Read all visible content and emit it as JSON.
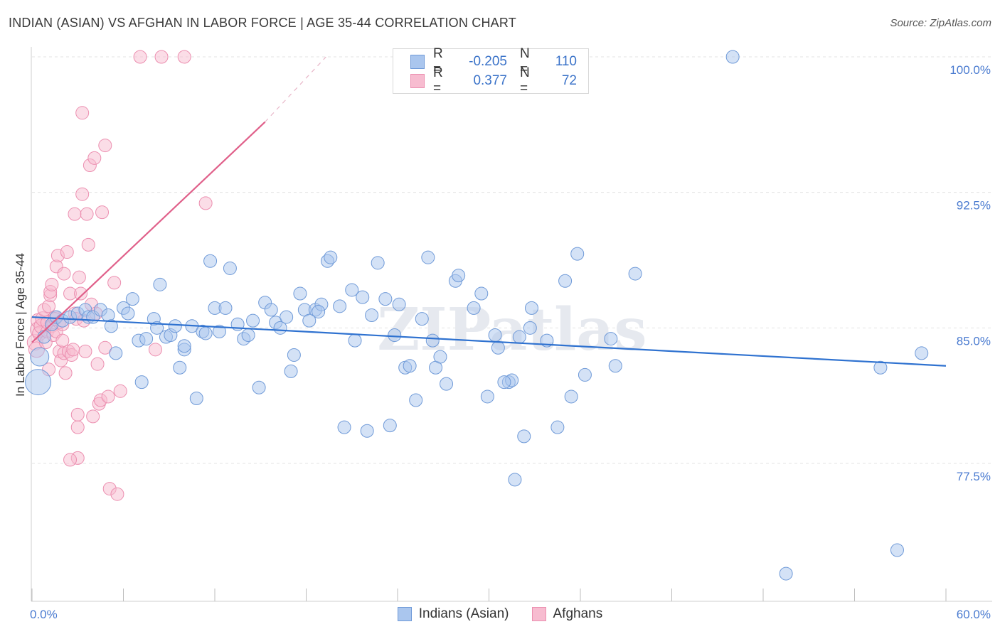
{
  "header": {
    "title": "INDIAN (ASIAN) VS AFGHAN IN LABOR FORCE | AGE 35-44 CORRELATION CHART",
    "source": "Source: ZipAtlas.com"
  },
  "colors": {
    "blue_fill": "#aac6ee",
    "blue_stroke": "#6f9ad8",
    "blue_line": "#2f72d0",
    "pink_fill": "#f7bcd0",
    "pink_stroke": "#ec8fb0",
    "pink_line": "#e0608a",
    "tick_text": "#4a7bd0"
  },
  "legend": {
    "rows": [
      {
        "r_label": "R =",
        "r_value": "-0.205",
        "n_label": "N =",
        "n_value": "110"
      },
      {
        "r_label": "R =",
        "r_value": "0.377",
        "n_label": "N =",
        "n_value": "72"
      }
    ]
  },
  "bottom_legend": {
    "items": [
      {
        "label": "Indians (Asian)"
      },
      {
        "label": "Afghans"
      }
    ]
  },
  "watermark": "ZIPatlas",
  "chart_data": {
    "type": "scatter",
    "title": "INDIAN (ASIAN) VS AFGHAN IN LABOR FORCE | AGE 35-44 CORRELATION CHART",
    "xlabel": "",
    "ylabel": "In Labor Force | Age 35-44",
    "xlim": [
      0,
      60
    ],
    "ylim": [
      70.5,
      100.5
    ],
    "x_tick_labels": [
      "0.0%",
      "60.0%"
    ],
    "y_ticks": [
      77.5,
      85.0,
      92.5,
      100.0
    ],
    "y_tick_labels": [
      "77.5%",
      "85.0%",
      "92.5%",
      "100.0%"
    ],
    "series": [
      {
        "name": "Indians (Asian)",
        "r": -0.205,
        "n": 110,
        "trend": {
          "x0": 0,
          "y0": 85.6,
          "x1": 60,
          "y1": 82.9
        },
        "points": [
          [
            0.4,
            82.0,
            18
          ],
          [
            0.5,
            83.4,
            13
          ],
          [
            0.8,
            84.5,
            9
          ],
          [
            1.3,
            85.2,
            9
          ],
          [
            1.6,
            85.6,
            9
          ],
          [
            2.0,
            85.4,
            9
          ],
          [
            2.5,
            85.6,
            9
          ],
          [
            3.0,
            85.8,
            9
          ],
          [
            3.5,
            86.0,
            9
          ],
          [
            3.7,
            85.6,
            9
          ],
          [
            4.0,
            85.6,
            9
          ],
          [
            4.5,
            86.0,
            9
          ],
          [
            5.0,
            85.7,
            9
          ],
          [
            5.2,
            85.1,
            9
          ],
          [
            5.5,
            83.6,
            9
          ],
          [
            6.0,
            86.1,
            9
          ],
          [
            6.3,
            85.8,
            9
          ],
          [
            6.6,
            86.6,
            9
          ],
          [
            7.0,
            84.3,
            9
          ],
          [
            7.2,
            82.0,
            9
          ],
          [
            7.5,
            84.4,
            9
          ],
          [
            8.0,
            85.5,
            9
          ],
          [
            8.2,
            85.0,
            9
          ],
          [
            8.4,
            87.4,
            9
          ],
          [
            8.8,
            84.5,
            9
          ],
          [
            9.1,
            84.6,
            9
          ],
          [
            9.4,
            85.1,
            9
          ],
          [
            9.7,
            82.8,
            9
          ],
          [
            10.0,
            83.8,
            9
          ],
          [
            10.5,
            85.1,
            9
          ],
          [
            10.8,
            81.1,
            9
          ],
          [
            11.2,
            84.8,
            9
          ],
          [
            11.4,
            84.7,
            9
          ],
          [
            11.7,
            88.7,
            9
          ],
          [
            12.0,
            86.1,
            9
          ],
          [
            12.3,
            84.8,
            9
          ],
          [
            12.7,
            86.1,
            9
          ],
          [
            13.0,
            88.3,
            9
          ],
          [
            13.5,
            85.2,
            9
          ],
          [
            13.9,
            84.4,
            9
          ],
          [
            14.2,
            84.6,
            9
          ],
          [
            14.5,
            85.4,
            9
          ],
          [
            14.9,
            81.7,
            9
          ],
          [
            15.3,
            86.4,
            9
          ],
          [
            15.7,
            86.0,
            9
          ],
          [
            16.0,
            85.3,
            9
          ],
          [
            16.3,
            85.0,
            9
          ],
          [
            16.7,
            85.6,
            9
          ],
          [
            17.0,
            82.6,
            9
          ],
          [
            17.2,
            83.5,
            9
          ],
          [
            17.6,
            86.9,
            9
          ],
          [
            17.9,
            86.0,
            9
          ],
          [
            18.2,
            85.4,
            9
          ],
          [
            18.6,
            86.0,
            9
          ],
          [
            19.0,
            86.3,
            9
          ],
          [
            19.4,
            88.7,
            9
          ],
          [
            19.6,
            88.9,
            9
          ],
          [
            20.2,
            86.2,
            9
          ],
          [
            20.5,
            79.5,
            9
          ],
          [
            21.0,
            87.1,
            9
          ],
          [
            21.2,
            84.3,
            9
          ],
          [
            21.7,
            86.7,
            9
          ],
          [
            22.0,
            79.3,
            9
          ],
          [
            22.3,
            85.7,
            9
          ],
          [
            22.7,
            88.6,
            9
          ],
          [
            23.2,
            86.6,
            9
          ],
          [
            23.5,
            79.6,
            9
          ],
          [
            23.8,
            84.6,
            9
          ],
          [
            24.1,
            86.3,
            9
          ],
          [
            24.5,
            82.8,
            9
          ],
          [
            24.8,
            82.9,
            9
          ],
          [
            25.2,
            81.0,
            9
          ],
          [
            25.6,
            85.5,
            9
          ],
          [
            26.0,
            88.9,
            9
          ],
          [
            26.5,
            82.8,
            9
          ],
          [
            26.8,
            83.4,
            9
          ],
          [
            27.2,
            81.9,
            9
          ],
          [
            27.8,
            87.6,
            9
          ],
          [
            28.0,
            87.9,
            9
          ],
          [
            29.0,
            86.1,
            9
          ],
          [
            29.5,
            86.9,
            9
          ],
          [
            29.9,
            81.2,
            9
          ],
          [
            30.4,
            84.6,
            9
          ],
          [
            30.6,
            83.9,
            9
          ],
          [
            31.3,
            82.0,
            9
          ],
          [
            31.5,
            82.1,
            9
          ],
          [
            32.0,
            84.5,
            9
          ],
          [
            32.3,
            79.0,
            9
          ],
          [
            32.7,
            85.0,
            9
          ],
          [
            32.8,
            86.1,
            9
          ],
          [
            33.8,
            84.3,
            9
          ],
          [
            34.5,
            79.5,
            9
          ],
          [
            35.0,
            87.6,
            9
          ],
          [
            35.4,
            81.2,
            9
          ],
          [
            35.8,
            89.1,
            9
          ],
          [
            36.3,
            82.4,
            9
          ],
          [
            38.0,
            84.4,
            9
          ],
          [
            38.3,
            82.9,
            9
          ],
          [
            39.6,
            88.0,
            9
          ],
          [
            46.0,
            100.0,
            9
          ],
          [
            49.5,
            71.4,
            9
          ],
          [
            55.7,
            82.8,
            9
          ],
          [
            56.8,
            72.7,
            9
          ],
          [
            58.4,
            83.6,
            9
          ],
          [
            31.0,
            82.0,
            9
          ],
          [
            31.7,
            76.6,
            9
          ],
          [
            18.8,
            85.9,
            9
          ],
          [
            10.0,
            84.0,
            9
          ],
          [
            26.3,
            84.3,
            9
          ]
        ]
      },
      {
        "name": "Afghans",
        "r": 0.377,
        "n": 72,
        "trend": {
          "x0": 0,
          "y0": 84.2,
          "x1": 15.3,
          "y1": 96.4
        },
        "trend_dashed_to": {
          "x": 19.3,
          "y": 100.0
        },
        "points": [
          [
            0.2,
            84.2,
            11
          ],
          [
            0.3,
            83.8,
            11
          ],
          [
            0.4,
            84.9,
            11
          ],
          [
            0.4,
            85.4,
            10
          ],
          [
            0.5,
            84.7,
            10
          ],
          [
            0.6,
            85.1,
            10
          ],
          [
            0.7,
            85.5,
            10
          ],
          [
            0.8,
            86.0,
            9
          ],
          [
            0.9,
            84.2,
            9
          ],
          [
            1.0,
            84.8,
            9
          ],
          [
            1.0,
            85.3,
            9
          ],
          [
            1.1,
            86.2,
            9
          ],
          [
            1.1,
            82.7,
            9
          ],
          [
            1.2,
            86.8,
            9
          ],
          [
            1.2,
            87.0,
            9
          ],
          [
            1.3,
            87.4,
            9
          ],
          [
            1.3,
            85.1,
            9
          ],
          [
            1.4,
            84.6,
            9
          ],
          [
            1.5,
            85.6,
            9
          ],
          [
            1.6,
            88.4,
            9
          ],
          [
            1.6,
            84.8,
            9
          ],
          [
            1.7,
            89.0,
            9
          ],
          [
            1.8,
            83.7,
            9
          ],
          [
            1.8,
            85.3,
            9
          ],
          [
            1.9,
            83.2,
            9
          ],
          [
            2.0,
            85.2,
            9
          ],
          [
            2.0,
            84.3,
            9
          ],
          [
            2.1,
            83.6,
            9
          ],
          [
            2.1,
            88.0,
            9
          ],
          [
            2.2,
            82.5,
            9
          ],
          [
            2.3,
            89.2,
            9
          ],
          [
            2.4,
            83.7,
            9
          ],
          [
            2.5,
            86.9,
            9
          ],
          [
            2.6,
            83.5,
            9
          ],
          [
            2.7,
            83.8,
            9
          ],
          [
            2.8,
            91.3,
            9
          ],
          [
            2.8,
            85.8,
            9
          ],
          [
            2.9,
            85.5,
            9
          ],
          [
            3.0,
            80.2,
            9
          ],
          [
            3.0,
            79.5,
            9
          ],
          [
            3.0,
            77.8,
            9
          ],
          [
            3.1,
            87.8,
            9
          ],
          [
            3.2,
            86.9,
            9
          ],
          [
            3.3,
            92.4,
            9
          ],
          [
            3.3,
            96.9,
            9
          ],
          [
            3.4,
            85.4,
            9
          ],
          [
            3.5,
            83.7,
            9
          ],
          [
            3.6,
            91.3,
            9
          ],
          [
            3.7,
            89.6,
            9
          ],
          [
            3.8,
            94.0,
            9
          ],
          [
            3.9,
            86.3,
            9
          ],
          [
            4.0,
            80.1,
            9
          ],
          [
            4.1,
            94.4,
            9
          ],
          [
            4.2,
            85.8,
            9
          ],
          [
            4.3,
            83.0,
            9
          ],
          [
            4.4,
            80.8,
            9
          ],
          [
            4.5,
            81.0,
            9
          ],
          [
            4.6,
            91.4,
            9
          ],
          [
            4.8,
            95.1,
            9
          ],
          [
            4.8,
            83.9,
            9
          ],
          [
            5.0,
            81.2,
            9
          ],
          [
            5.1,
            76.1,
            9
          ],
          [
            5.4,
            87.5,
            9
          ],
          [
            5.6,
            75.8,
            9
          ],
          [
            5.8,
            81.5,
            9
          ],
          [
            2.5,
            77.7,
            9
          ],
          [
            7.1,
            100.0,
            9
          ],
          [
            8.5,
            100.0,
            9
          ],
          [
            10.0,
            100.0,
            9
          ],
          [
            11.4,
            91.9,
            9
          ],
          [
            8.1,
            83.8,
            9
          ],
          [
            1.5,
            85.5,
            9
          ]
        ]
      }
    ]
  }
}
